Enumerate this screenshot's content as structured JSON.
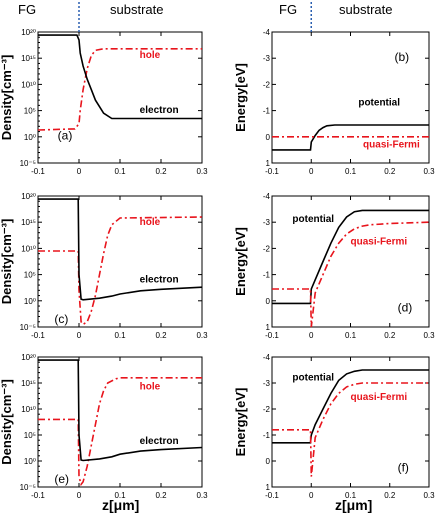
{
  "headers": {
    "left_fg": "FG",
    "left_substrate": "substrate",
    "right_fg": "FG",
    "right_substrate": "substrate"
  },
  "colors": {
    "electron": "#000000",
    "hole": "#e8141c",
    "potential": "#000000",
    "quasi_fermi": "#e8141c",
    "divider": "#2a5fb0"
  },
  "chart_data": [
    {
      "type": "line",
      "panel": "(a)",
      "ylabel": "Density[cm⁻³]",
      "xlabel": "",
      "xlim": [
        -0.1,
        0.3
      ],
      "ylim": [
        -5,
        20
      ],
      "y_scale": "log",
      "xticks": [
        "-0.1",
        "0",
        "0.1",
        "0.2",
        "0.3"
      ],
      "yticks": [
        "10⁻⁵",
        "10⁰",
        "10⁵",
        "10¹⁰",
        "10¹⁵",
        "10²⁰"
      ],
      "series": [
        {
          "name": "hole",
          "style": "dashdot",
          "color": "#e8141c",
          "x": [
            -0.1,
            -0.01,
            0,
            0.003,
            0.01,
            0.02,
            0.03,
            0.04,
            0.06,
            0.1,
            0.3
          ],
          "y": [
            1.3,
            1.5,
            2.5,
            5,
            9,
            13,
            15.5,
            16.5,
            16.8,
            16.8,
            16.8
          ]
        },
        {
          "name": "electron",
          "style": "solid",
          "color": "#000000",
          "x": [
            -0.1,
            -0.005,
            0,
            0.003,
            0.01,
            0.02,
            0.03,
            0.04,
            0.06,
            0.08,
            0.1,
            0.3
          ],
          "y": [
            19.4,
            19.4,
            18.5,
            16,
            13.5,
            11,
            9,
            7,
            4.5,
            3.5,
            3.5,
            3.5
          ]
        }
      ]
    },
    {
      "type": "line",
      "panel": "(b)",
      "ylabel": "Energy[eV]",
      "xlabel": "",
      "xlim": [
        -0.1,
        0.3
      ],
      "ylim": [
        -4,
        1
      ],
      "y_inverted": true,
      "xticks": [
        "-0.1",
        "0",
        "0.1",
        "0.2",
        "0.3"
      ],
      "yticks": [
        "-4",
        "-3",
        "-2",
        "-1",
        "0",
        "1"
      ],
      "series": [
        {
          "name": "potential",
          "style": "solid",
          "color": "#000000",
          "x": [
            -0.1,
            -0.002,
            0,
            0.01,
            0.02,
            0.03,
            0.04,
            0.06,
            0.3
          ],
          "y": [
            0.5,
            0.5,
            0.2,
            -0.05,
            -0.25,
            -0.35,
            -0.42,
            -0.45,
            -0.45
          ]
        },
        {
          "name": "quasi-Fermi",
          "style": "dashdot",
          "color": "#e8141c",
          "x": [
            -0.1,
            0.3
          ],
          "y": [
            0,
            0
          ]
        }
      ]
    },
    {
      "type": "line",
      "panel": "(c)",
      "ylabel": "Density[cm⁻³]",
      "xlabel": "",
      "xlim": [
        -0.1,
        0.3
      ],
      "ylim": [
        -5,
        20
      ],
      "y_scale": "log",
      "xticks": [
        "-0.1",
        "0",
        "0.1",
        "0.2",
        "0.3"
      ],
      "yticks": [
        "10⁻⁵",
        "10⁰",
        "10⁵",
        "10¹⁰",
        "10¹⁵",
        "10²⁰"
      ],
      "series": [
        {
          "name": "hole",
          "style": "dashdot",
          "color": "#e8141c",
          "x": [
            -0.1,
            -0.002,
            0,
            0.005,
            0.01,
            0.02,
            0.03,
            0.04,
            0.05,
            0.06,
            0.07,
            0.08,
            0.1,
            0.3
          ],
          "y": [
            9.5,
            9.5,
            2,
            -4,
            -4.5,
            -4,
            -2,
            1,
            5,
            9,
            12.5,
            14.5,
            15.8,
            16
          ]
        },
        {
          "name": "electron",
          "style": "solid",
          "color": "#000000",
          "x": [
            -0.1,
            -0.002,
            0,
            0.005,
            0.01,
            0.05,
            0.08,
            0.1,
            0.15,
            0.2,
            0.3
          ],
          "y": [
            19.4,
            19.4,
            5,
            0.3,
            0.2,
            0.5,
            0.9,
            1.3,
            1.9,
            2.2,
            2.6
          ]
        }
      ]
    },
    {
      "type": "line",
      "panel": "(d)",
      "ylabel": "Energy[eV]",
      "xlabel": "",
      "xlim": [
        -0.1,
        0.3
      ],
      "ylim": [
        -4,
        1
      ],
      "y_inverted": true,
      "xticks": [
        "-0.1",
        "0",
        "0.1",
        "0.2",
        "0.3"
      ],
      "yticks": [
        "-4",
        "-3",
        "-2",
        "-1",
        "0",
        "1"
      ],
      "series": [
        {
          "name": "potential",
          "style": "solid",
          "color": "#000000",
          "x": [
            -0.1,
            -0.002,
            0,
            0.01,
            0.03,
            0.05,
            0.07,
            0.09,
            0.11,
            0.13,
            0.15,
            0.3
          ],
          "y": [
            0.1,
            0.1,
            -0.45,
            -0.8,
            -1.5,
            -2.2,
            -2.8,
            -3.2,
            -3.4,
            -3.45,
            -3.45,
            -3.45
          ]
        },
        {
          "name": "quasi-Fermi",
          "style": "dashdot",
          "color": "#e8141c",
          "x": [
            -0.1,
            -0.002,
            0,
            0.01,
            0.03,
            0.05,
            0.07,
            0.09,
            0.11,
            0.13,
            0.15,
            0.2,
            0.3
          ],
          "y": [
            -0.45,
            -0.45,
            1,
            -0.3,
            -1.0,
            -1.7,
            -2.2,
            -2.55,
            -2.75,
            -2.85,
            -2.9,
            -2.95,
            -3.0
          ]
        }
      ]
    },
    {
      "type": "line",
      "panel": "(e)",
      "ylabel": "Density[cm⁻³]",
      "xlabel": "z[μm]",
      "xlim": [
        -0.1,
        0.3
      ],
      "ylim": [
        -5,
        20
      ],
      "y_scale": "log",
      "xticks": [
        "-0.1",
        "0",
        "0.1",
        "0.2",
        "0.3"
      ],
      "yticks": [
        "10⁻⁵",
        "10⁰",
        "10⁵",
        "10¹⁰",
        "10¹⁵",
        "10²⁰"
      ],
      "series": [
        {
          "name": "hole",
          "style": "dashdot",
          "color": "#e8141c",
          "x": [
            -0.1,
            -0.002,
            0,
            0.005,
            0.01,
            0.02,
            0.03,
            0.04,
            0.05,
            0.06,
            0.07,
            0.09,
            0.1,
            0.3
          ],
          "y": [
            8,
            8,
            -3,
            -4.5,
            -4,
            -1,
            3,
            7,
            11,
            13.5,
            15,
            15.8,
            16,
            16
          ]
        },
        {
          "name": "electron",
          "style": "solid",
          "color": "#000000",
          "x": [
            -0.1,
            -0.002,
            0,
            0.005,
            0.01,
            0.05,
            0.08,
            0.1,
            0.15,
            0.2,
            0.3
          ],
          "y": [
            19.4,
            19.4,
            5,
            0.2,
            0.1,
            0.4,
            0.8,
            1.3,
            1.9,
            2.2,
            2.6
          ]
        }
      ]
    },
    {
      "type": "line",
      "panel": "(f)",
      "ylabel": "Energy[eV]",
      "xlabel": "z[μm]",
      "xlim": [
        -0.1,
        0.3
      ],
      "ylim": [
        -4,
        1
      ],
      "y_inverted": true,
      "xticks": [
        "-0.1",
        "0",
        "0.1",
        "0.2",
        "0.3"
      ],
      "yticks": [
        "-4",
        "-3",
        "-2",
        "-1",
        "0",
        "1"
      ],
      "series": [
        {
          "name": "potential",
          "style": "solid",
          "color": "#000000",
          "x": [
            -0.1,
            -0.002,
            0,
            0.01,
            0.03,
            0.05,
            0.07,
            0.09,
            0.11,
            0.13,
            0.15,
            0.3
          ],
          "y": [
            -0.7,
            -0.7,
            -1.0,
            -1.4,
            -2.0,
            -2.6,
            -3.1,
            -3.35,
            -3.45,
            -3.5,
            -3.5,
            -3.5
          ]
        },
        {
          "name": "quasi-Fermi",
          "style": "dashdot",
          "color": "#e8141c",
          "x": [
            -0.1,
            -0.002,
            0,
            0.01,
            0.03,
            0.05,
            0.07,
            0.09,
            0.11,
            0.13,
            0.15,
            0.2,
            0.3
          ],
          "y": [
            -1.2,
            -1.2,
            0.6,
            -0.9,
            -1.6,
            -2.2,
            -2.6,
            -2.85,
            -2.95,
            -3.0,
            -3.0,
            -3.0,
            -3.0
          ]
        }
      ]
    }
  ]
}
